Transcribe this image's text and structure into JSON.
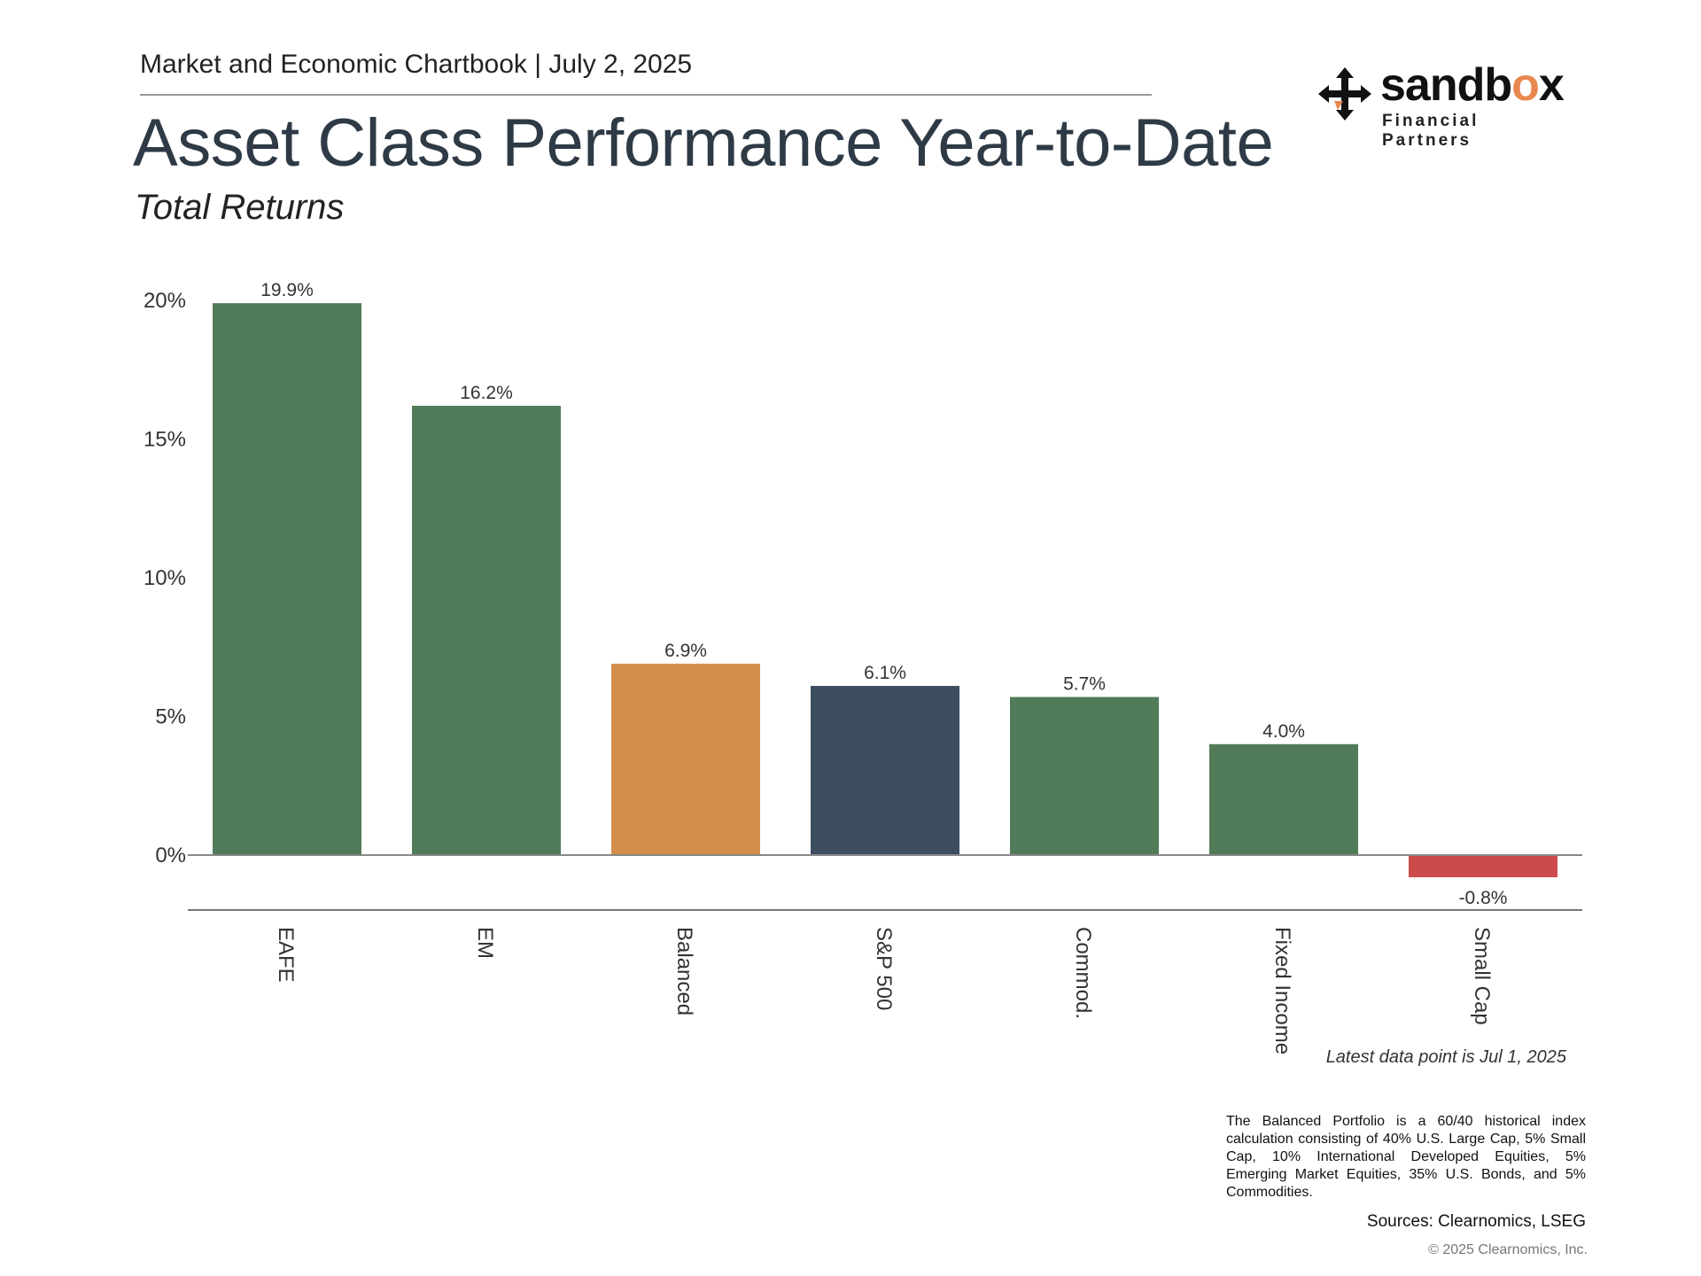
{
  "header": {
    "text": "Market and Economic Chartbook | July 2, 2025",
    "title": "Asset Class Performance Year-to-Date",
    "subtitle": "Total Returns"
  },
  "logo": {
    "word_start": "sandb",
    "word_accent": "o",
    "word_end": "x",
    "tagline": "Financial Partners",
    "accent_color": "#e8884f"
  },
  "chart_data": {
    "type": "bar",
    "categories": [
      "EAFE",
      "EM",
      "Balanced",
      "S&P 500",
      "Commod.",
      "Fixed Income",
      "Small Cap"
    ],
    "values": [
      19.9,
      16.2,
      6.9,
      6.1,
      5.7,
      4.0,
      -0.8
    ],
    "value_labels": [
      "19.9%",
      "16.2%",
      "6.9%",
      "6.1%",
      "5.7%",
      "4.0%",
      "-0.8%"
    ],
    "colors": [
      "#517b58",
      "#517b58",
      "#d48e4c",
      "#3c4e60",
      "#517b58",
      "#517b58",
      "#cc4a4a"
    ],
    "yticks": [
      0,
      5,
      10,
      15,
      20
    ],
    "ytick_labels": [
      "0%",
      "5%",
      "10%",
      "15%",
      "20%"
    ],
    "ylim": [
      -2,
      20
    ],
    "grid": false,
    "legend": "none"
  },
  "footer": {
    "latest": "Latest data point is Jul 1, 2025",
    "note": "The Balanced Portfolio is a 60/40 historical index calculation consisting of 40% U.S. Large Cap, 5% Small Cap, 10% International Developed Equities, 5% Emerging Market Equities, 35% U.S. Bonds, and 5% Commodities.",
    "sources": "Sources: Clearnomics, LSEG",
    "copyright": "© 2025 Clearnomics, Inc."
  }
}
